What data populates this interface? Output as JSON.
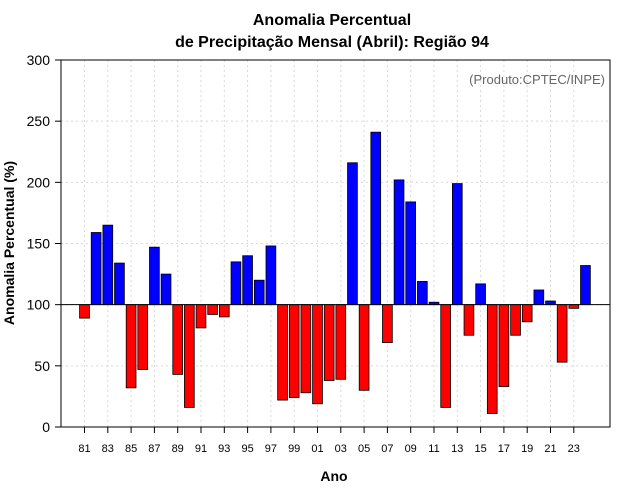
{
  "chart_data": {
    "type": "bar",
    "title_line1": "Anomalia Percentual",
    "title_line2": "de Precipitação Mensal (Abril): Região 94",
    "xlabel": "Ano",
    "ylabel": "Anomalia Percentual (%)",
    "annotation": "(Produto:CPTEC/INPE)",
    "ylim": [
      0,
      300
    ],
    "yticks": [
      0,
      50,
      100,
      150,
      200,
      250,
      300
    ],
    "baseline": 100,
    "grid": true,
    "colors": {
      "above": "#0000ff",
      "below": "#ff0000",
      "border": "#000000"
    },
    "categories": [
      "81",
      "82",
      "83",
      "84",
      "85",
      "86",
      "87",
      "88",
      "89",
      "90",
      "91",
      "92",
      "93",
      "94",
      "95",
      "96",
      "97",
      "98",
      "99",
      "00",
      "01",
      "02",
      "03",
      "04",
      "05",
      "06",
      "07",
      "08",
      "09",
      "10",
      "11",
      "12",
      "13",
      "14",
      "15",
      "16",
      "17",
      "18",
      "19",
      "20",
      "21",
      "22",
      "23",
      "24"
    ],
    "xtick_labels": [
      "81",
      "83",
      "85",
      "87",
      "89",
      "91",
      "93",
      "95",
      "97",
      "99",
      "01",
      "03",
      "05",
      "07",
      "09",
      "11",
      "13",
      "15",
      "17",
      "19",
      "21",
      "23"
    ],
    "values": [
      89,
      159,
      165,
      134,
      32,
      47,
      147,
      125,
      43,
      16,
      81,
      92,
      90,
      135,
      140,
      120,
      148,
      22,
      24,
      28,
      19,
      38,
      39,
      216,
      30,
      241,
      69,
      202,
      184,
      119,
      102,
      16,
      199,
      75,
      117,
      11,
      33,
      75,
      86,
      112,
      103,
      53,
      97,
      132
    ]
  }
}
